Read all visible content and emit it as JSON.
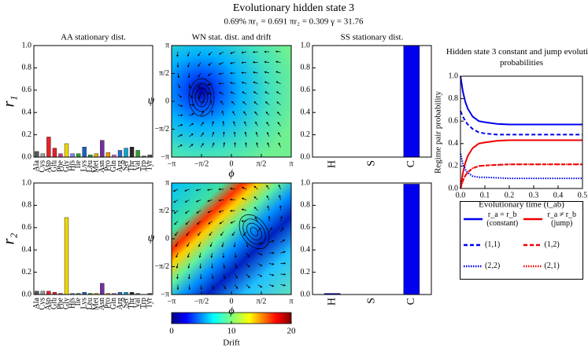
{
  "header": {
    "title": "Evolutionary hidden state 3",
    "subtitle": "0.69% πr₁ = 0.691 πr₂ = 0.309 γ = 31.76"
  },
  "chart_data": [
    {
      "type": "bar",
      "title": "AA stationary dist.",
      "ylabel": "r₁",
      "categories": [
        "Ala",
        "Cys",
        "Asp",
        "Glu",
        "Phe",
        "Gly",
        "His",
        "Ile",
        "Lys",
        "Leu",
        "Met",
        "Asn",
        "Pro",
        "Gln",
        "Arg",
        "Ser",
        "Thr",
        "Val",
        "Trp",
        "Tyr"
      ],
      "values": [
        0.05,
        0.03,
        0.18,
        0.08,
        0.03,
        0.12,
        0.03,
        0.03,
        0.09,
        0.02,
        0.03,
        0.15,
        0.04,
        0.02,
        0.06,
        0.08,
        0.09,
        0.06,
        0.01,
        0.02
      ],
      "colors": [
        "#595959",
        "#a0a0a0",
        "#e8202a",
        "#e8202a",
        "#d03090",
        "#f0d800",
        "#8080ff",
        "#30a030",
        "#2060c0",
        "#30a030",
        "#e0b000",
        "#7030a0",
        "#ff9900",
        "#d070d0",
        "#2a6fd0",
        "#10a0d0",
        "#2a2a2a",
        "#30a030",
        "#808080",
        "#606060"
      ],
      "ylim": [
        0,
        1
      ],
      "yticks": [
        {
          "value": 0,
          "label": "0.0"
        },
        0.2,
        0.4,
        0.6,
        0.8,
        {
          "value": 1,
          "label": "1.0"
        }
      ]
    },
    {
      "type": "heatmap",
      "title": "WN stat. dist. and drift",
      "xlabel": "ϕ",
      "ylabel": "ψ",
      "xlim": [
        -3.141592653589793,
        3.141592653589793
      ],
      "ylim": [
        -3.141592653589793,
        3.141592653589793
      ],
      "xticks": [
        {
          "value": -3.141592653589793,
          "label": "−π"
        },
        {
          "value": -1.5707963267948966,
          "label": "−π/2"
        },
        0,
        {
          "value": 1.5707963267948966,
          "label": "π/2"
        },
        {
          "value": 3.141592653589793,
          "label": "π"
        }
      ],
      "yticks": [
        {
          "value": -3.141592653589793,
          "label": "−π"
        },
        {
          "value": -1.5707963267948966,
          "label": "−π/2"
        },
        0,
        {
          "value": 1.5707963267948966,
          "label": "π/2"
        },
        {
          "value": 3.141592653589793,
          "label": "π"
        }
      ]
    },
    {
      "type": "bar",
      "title": "SS stationary dist.",
      "categories": [
        "H",
        "S",
        "C"
      ],
      "values": [
        0,
        0,
        1.0
      ],
      "color": "#0000ee",
      "ylim": [
        0,
        1
      ],
      "yticks": [
        {
          "value": 0,
          "label": "0.0"
        },
        0.2,
        0.4,
        0.6,
        0.8,
        {
          "value": 1,
          "label": "1.0"
        }
      ]
    },
    {
      "type": "bar",
      "ylabel": "r₂",
      "categories": [
        "Ala",
        "Cys",
        "Asp",
        "Glu",
        "Phe",
        "Gly",
        "His",
        "Ile",
        "Lys",
        "Leu",
        "Met",
        "Asn",
        "Pro",
        "Gln",
        "Arg",
        "Ser",
        "Thr",
        "Val",
        "Trp",
        "Tyr"
      ],
      "values": [
        0.03,
        0.03,
        0.03,
        0.02,
        0.01,
        0.69,
        0.01,
        0.01,
        0.02,
        0.01,
        0.01,
        0.1,
        0.01,
        0.01,
        0.02,
        0.02,
        0.02,
        0.01,
        0.0,
        0.01
      ],
      "colors": [
        "#595959",
        "#a0a0a0",
        "#e8202a",
        "#e8202a",
        "#d03090",
        "#f0d800",
        "#8080ff",
        "#30a030",
        "#2060c0",
        "#30a030",
        "#e0b000",
        "#7030a0",
        "#ff9900",
        "#d070d0",
        "#2a6fd0",
        "#10a0d0",
        "#2a2a2a",
        "#30a030",
        "#808080",
        "#606060"
      ],
      "ylim": [
        0,
        1
      ],
      "yticks": [
        {
          "value": 0,
          "label": "0.0"
        },
        0.2,
        0.4,
        0.6,
        0.8,
        {
          "value": 1,
          "label": "1.0"
        }
      ]
    },
    {
      "type": "heatmap",
      "xlabel": "ϕ",
      "ylabel": "ψ",
      "xlim": [
        -3.141592653589793,
        3.141592653589793
      ],
      "ylim": [
        -3.141592653589793,
        3.141592653589793
      ],
      "xticks": [
        {
          "value": -3.141592653589793,
          "label": "−π"
        },
        {
          "value": -1.5707963267948966,
          "label": "−π/2"
        },
        0,
        {
          "value": 1.5707963267948966,
          "label": "π/2"
        },
        {
          "value": 3.141592653589793,
          "label": "π"
        }
      ],
      "yticks": [
        {
          "value": -3.141592653589793,
          "label": "−π"
        },
        {
          "value": -1.5707963267948966,
          "label": "−π/2"
        },
        0,
        {
          "value": 1.5707963267948966,
          "label": "π/2"
        },
        {
          "value": 3.141592653589793,
          "label": "π"
        }
      ],
      "colorbar": {
        "label": "Drift",
        "lim": [
          0,
          20
        ],
        "ticks": [
          0,
          10,
          20
        ]
      }
    },
    {
      "type": "bar",
      "categories": [
        "H",
        "S",
        "C"
      ],
      "values": [
        0.01,
        0,
        0.99
      ],
      "color": "#0000ee",
      "ylim": [
        0,
        1
      ],
      "yticks": [
        {
          "value": 0,
          "label": "0.0"
        },
        0.2,
        0.4,
        0.6,
        0.8,
        {
          "value": 1,
          "label": "1.0"
        }
      ]
    },
    {
      "type": "line",
      "title": "Hidden state 3 constant and jump evolution probabilities",
      "xlabel": "Evolutionary time (t_ab)",
      "ylabel": "Regime pair probability",
      "x": [
        0,
        0.01,
        0.02,
        0.03,
        0.05,
        0.075,
        0.1,
        0.15,
        0.2,
        0.3,
        0.4,
        0.5
      ],
      "series": [
        {
          "name": "r_a = r_b (constant)",
          "color": "#0000ee",
          "dash": "solid",
          "values": [
            1.0,
            0.86,
            0.77,
            0.71,
            0.64,
            0.6,
            0.59,
            0.575,
            0.57,
            0.57,
            0.57,
            0.57
          ]
        },
        {
          "name": "r_a ≠ r_b (jump)",
          "color": "#ee0000",
          "dash": "solid",
          "values": [
            0,
            0.14,
            0.23,
            0.29,
            0.36,
            0.4,
            0.41,
            0.425,
            0.43,
            0.43,
            0.43,
            0.43
          ]
        },
        {
          "name": "(1,1)",
          "color": "#0000ee",
          "dash": "dashed",
          "values": [
            0.69,
            0.64,
            0.6,
            0.57,
            0.53,
            0.5,
            0.49,
            0.48,
            0.48,
            0.48,
            0.48,
            0.48
          ]
        },
        {
          "name": "(1,2)",
          "color": "#ee0000",
          "dash": "dashed",
          "values": [
            0,
            0.07,
            0.115,
            0.145,
            0.18,
            0.2,
            0.205,
            0.21,
            0.215,
            0.215,
            0.215,
            0.215
          ]
        },
        {
          "name": "(2,2)",
          "color": "#0000ee",
          "dash": "dotted",
          "values": [
            0.31,
            0.22,
            0.17,
            0.14,
            0.11,
            0.1,
            0.1,
            0.095,
            0.09,
            0.09,
            0.09,
            0.09
          ]
        },
        {
          "name": "(2,1)",
          "color": "#ee0000",
          "dash": "dotted",
          "values": [
            0,
            0.07,
            0.115,
            0.145,
            0.18,
            0.2,
            0.205,
            0.21,
            0.215,
            0.215,
            0.215,
            0.215
          ]
        }
      ],
      "xlim": [
        0,
        0.5
      ],
      "xticks": [
        {
          "value": 0,
          "label": "0.0"
        },
        0.1,
        0.2,
        0.3,
        0.4,
        0.5
      ],
      "ylim": [
        0,
        1
      ],
      "yticks": [
        {
          "value": 0,
          "label": "0.0"
        },
        0.2,
        0.4,
        0.6,
        0.8,
        {
          "value": 1,
          "label": "1.0"
        }
      ]
    }
  ]
}
